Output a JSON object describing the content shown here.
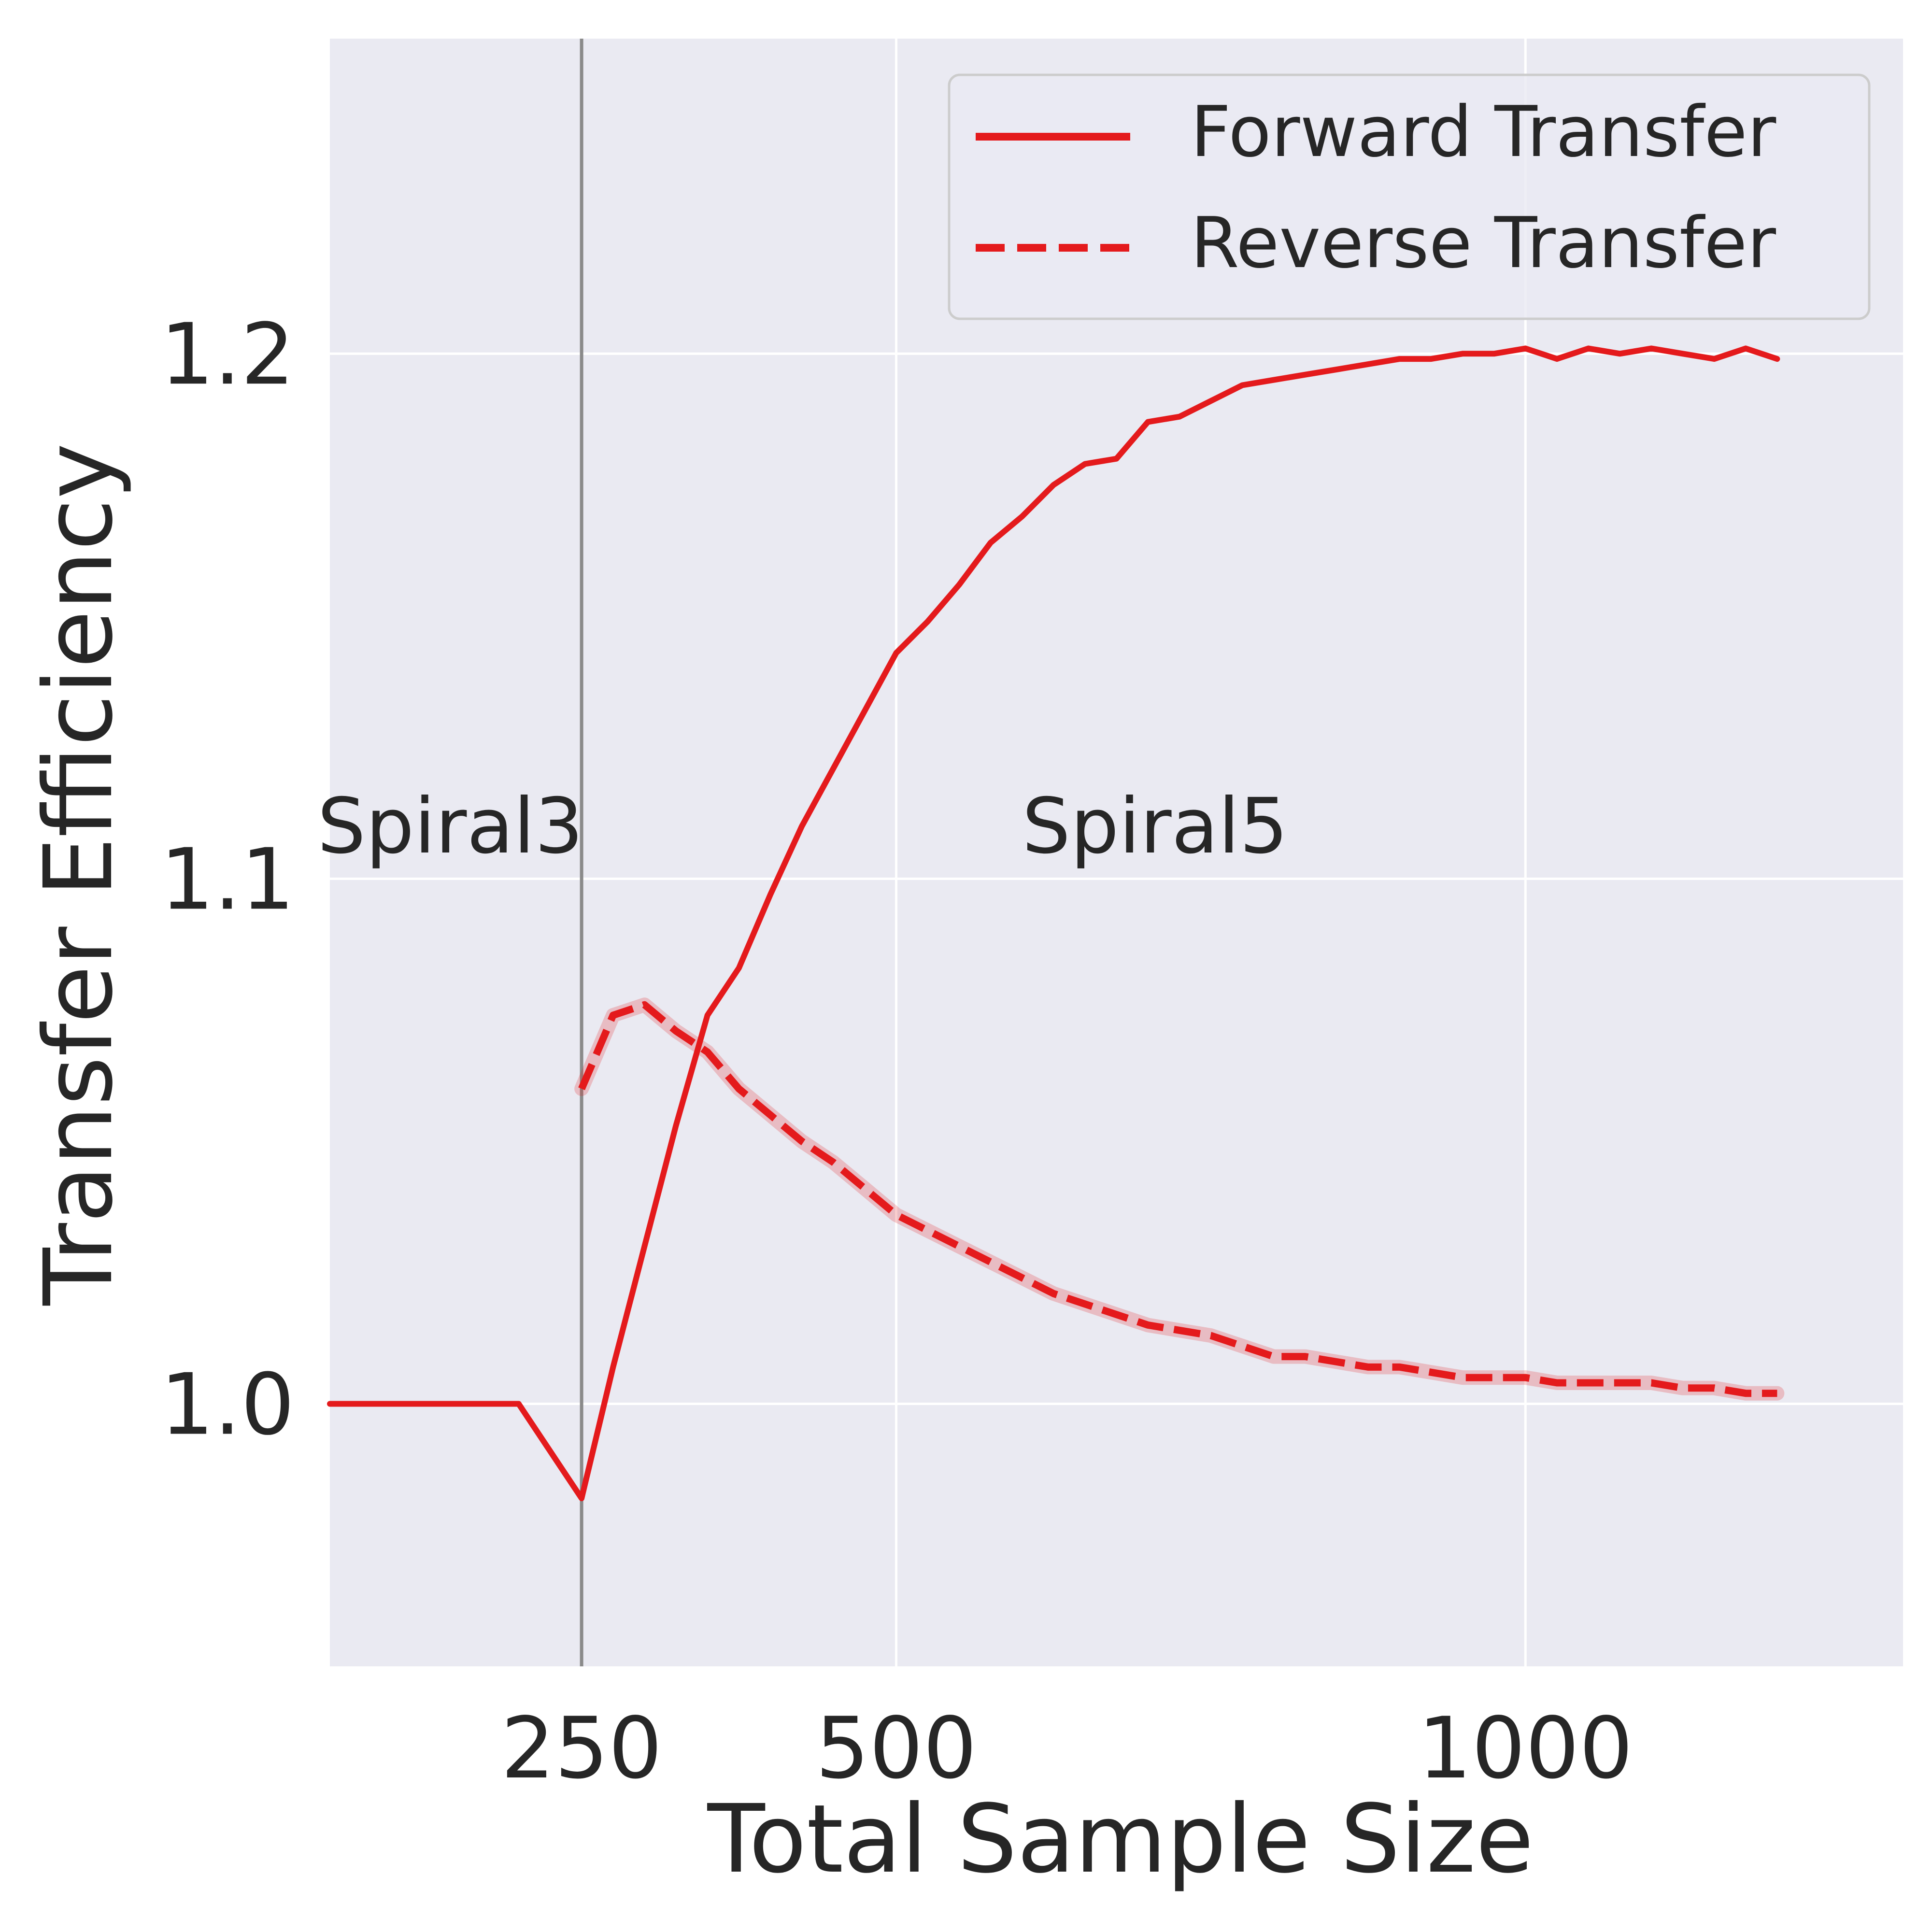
{
  "chart_data": {
    "type": "line",
    "title": "",
    "xlabel": "Total Sample Size",
    "ylabel": "Transfer Efficiency",
    "xlim": [
      50,
      1300
    ],
    "ylim": [
      0.95,
      1.26
    ],
    "xticks": [
      {
        "value": 250,
        "label": "250"
      },
      {
        "value": 500,
        "label": "500"
      },
      {
        "value": 1000,
        "label": "1000"
      }
    ],
    "yticks": [
      {
        "value": 1.0,
        "label": "1.0"
      },
      {
        "value": 1.1,
        "label": "1.1"
      },
      {
        "value": 1.2,
        "label": "1.2"
      }
    ],
    "grid": true,
    "legend": "top-right",
    "vline_x": 250,
    "annotations": [
      {
        "text": "Spiral3",
        "x": 40,
        "y": 1.105
      },
      {
        "text": "Spiral5",
        "x": 600,
        "y": 1.105
      }
    ],
    "series": [
      {
        "name": "Forward Transfer",
        "style": "solid",
        "color": "#e41a1c",
        "x": [
          50,
          100,
          150,
          200,
          250,
          275,
          300,
          325,
          350,
          375,
          400,
          425,
          450,
          475,
          500,
          525,
          550,
          575,
          600,
          625,
          650,
          675,
          700,
          725,
          750,
          775,
          800,
          825,
          850,
          875,
          900,
          925,
          950,
          975,
          1000,
          1025,
          1050,
          1075,
          1100,
          1125,
          1150,
          1175,
          1200
        ],
        "values": [
          1.0,
          1.0,
          1.0,
          1.0,
          0.982,
          1.007,
          1.03,
          1.053,
          1.074,
          1.083,
          1.097,
          1.11,
          1.121,
          1.132,
          1.143,
          1.149,
          1.156,
          1.164,
          1.169,
          1.175,
          1.179,
          1.18,
          1.187,
          1.188,
          1.191,
          1.194,
          1.195,
          1.196,
          1.197,
          1.198,
          1.199,
          1.199,
          1.2,
          1.2,
          1.201,
          1.199,
          1.201,
          1.2,
          1.201,
          1.2,
          1.199,
          1.201,
          1.199
        ]
      },
      {
        "name": "Reverse Transfer",
        "style": "dashed",
        "color": "#e41a1c",
        "x": [
          250,
          275,
          300,
          325,
          350,
          375,
          400,
          425,
          450,
          475,
          500,
          525,
          550,
          575,
          600,
          625,
          650,
          675,
          700,
          725,
          750,
          775,
          800,
          825,
          850,
          875,
          900,
          925,
          950,
          975,
          1000,
          1025,
          1050,
          1075,
          1100,
          1125,
          1150,
          1175,
          1200
        ],
        "values": [
          1.06,
          1.074,
          1.076,
          1.071,
          1.067,
          1.06,
          1.055,
          1.05,
          1.046,
          1.041,
          1.036,
          1.033,
          1.03,
          1.027,
          1.024,
          1.021,
          1.019,
          1.017,
          1.015,
          1.014,
          1.013,
          1.011,
          1.009,
          1.009,
          1.008,
          1.007,
          1.007,
          1.006,
          1.005,
          1.005,
          1.005,
          1.004,
          1.004,
          1.004,
          1.004,
          1.003,
          1.003,
          1.002,
          1.002
        ]
      }
    ]
  }
}
